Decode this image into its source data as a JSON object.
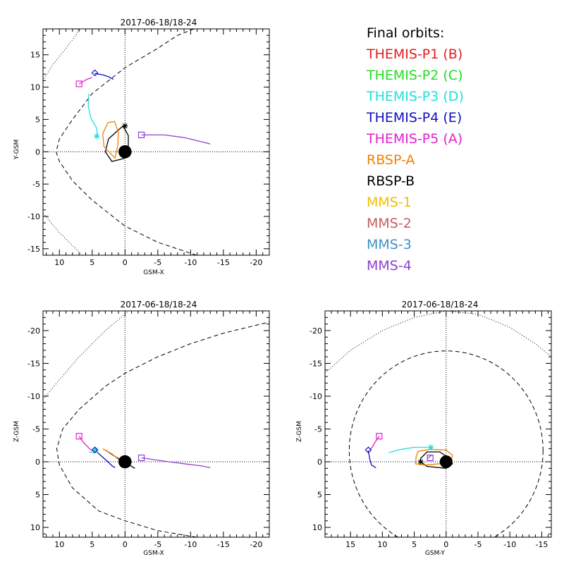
{
  "legend": {
    "title": "Final orbits:",
    "items": [
      {
        "label": "THEMIS-P1 (B)",
        "color": "#e02020"
      },
      {
        "label": "THEMIS-P2 (C)",
        "color": "#22dd22"
      },
      {
        "label": "THEMIS-P3 (D)",
        "color": "#22dddd"
      },
      {
        "label": "THEMIS-P4 (E)",
        "color": "#1010c0"
      },
      {
        "label": "THEMIS-P5 (A)",
        "color": "#e020d0"
      },
      {
        "label": "RBSP-A",
        "color": "#f08000"
      },
      {
        "label": "RBSP-B",
        "color": "#000000"
      },
      {
        "label": "MMS-1",
        "color": "#f0c000"
      },
      {
        "label": "MMS-2",
        "color": "#c06060"
      },
      {
        "label": "MMS-3",
        "color": "#4090c0"
      },
      {
        "label": "MMS-4",
        "color": "#9040d0"
      }
    ]
  },
  "chart_data": [
    {
      "type": "line",
      "id": "xy",
      "title": "2017-06-18/18-24",
      "xlabel": "GSM-X",
      "ylabel": "Y-GSM",
      "xlim": [
        12.5,
        -22
      ],
      "ylim": [
        19,
        -16
      ],
      "xticks": [
        10,
        5,
        0,
        -5,
        -10,
        -15,
        -20
      ],
      "yticks": [
        -15,
        -10,
        -5,
        0,
        5,
        10,
        15
      ],
      "series": [
        {
          "name": "RBSP-B",
          "color": "#000000",
          "points": [
            [
              0.3,
              4
            ],
            [
              2.5,
              2
            ],
            [
              3,
              0
            ],
            [
              2,
              -1.5
            ],
            [
              0,
              -1
            ],
            [
              -0.5,
              0.5
            ],
            [
              -0.5,
              2.5
            ],
            [
              0.3,
              4
            ]
          ]
        },
        {
          "name": "RBSP-A",
          "color": "#f08000",
          "points": [
            [
              1.5,
              -1
            ],
            [
              3.2,
              0.8
            ],
            [
              3.4,
              2.8
            ],
            [
              2.6,
              4.5
            ],
            [
              1.6,
              4.7
            ],
            [
              1,
              3
            ],
            [
              1.1,
              1
            ],
            [
              1.5,
              -1
            ]
          ]
        },
        {
          "name": "THEMIS-P3 (D)",
          "color": "#22dddd",
          "points": [
            [
              5.5,
              9
            ],
            [
              5.6,
              7
            ],
            [
              5.2,
              5.2
            ],
            [
              4.3,
              3.6
            ],
            [
              4.2,
              2.4
            ]
          ]
        },
        {
          "name": "THEMIS-P5 (A)",
          "color": "#e020d0",
          "points": [
            [
              7,
              10.5
            ],
            [
              5.8,
              11.2
            ],
            [
              5,
              11.5
            ]
          ]
        },
        {
          "name": "THEMIS-P4 (E)",
          "color": "#1010c0",
          "points": [
            [
              4.6,
              12.1
            ],
            [
              3.4,
              11.9
            ],
            [
              2.5,
              11.6
            ],
            [
              1.8,
              11.2
            ]
          ]
        },
        {
          "name": "MMS-4",
          "color": "#9040d0",
          "points": [
            [
              -2.5,
              2.6
            ],
            [
              -6,
              2.6
            ],
            [
              -9,
              2.2
            ],
            [
              -11.5,
              1.6
            ],
            [
              -13,
              1.2
            ]
          ]
        }
      ],
      "markers": [
        {
          "name": "rbsp-b-star",
          "shape": "star",
          "color": "#000000",
          "x": 0,
          "y": 4
        },
        {
          "name": "themis-p3-star",
          "shape": "star",
          "color": "#22dddd",
          "x": 4.3,
          "y": 2.4
        },
        {
          "name": "themis-p5-square",
          "shape": "square",
          "color": "#e020d0",
          "x": 7,
          "y": 10.5
        },
        {
          "name": "themis-p4-diamond",
          "shape": "diamond",
          "color": "#1010c0",
          "x": 4.6,
          "y": 12.2
        },
        {
          "name": "mms-square",
          "shape": "square",
          "color": "#9040d0",
          "x": -2.5,
          "y": 2.6
        }
      ],
      "earth": [
        0,
        0
      ],
      "magnetopause": [
        [
          -10.9,
          -16
        ],
        [
          -5,
          -14
        ],
        [
          0,
          -11.5
        ],
        [
          5,
          -7.5
        ],
        [
          8,
          -4.5
        ],
        [
          10,
          -1.5
        ],
        [
          10.5,
          0
        ],
        [
          10,
          2
        ],
        [
          8,
          5
        ],
        [
          5,
          9
        ],
        [
          0,
          13
        ],
        [
          -5,
          16
        ],
        [
          -8,
          18
        ],
        [
          -10.5,
          19
        ]
      ],
      "bowshock": [
        [
          6.5,
          -16
        ],
        [
          10,
          -12.5
        ],
        [
          12.5,
          -9.5
        ]
      ],
      "bowshock2": [
        [
          12.5,
          11
        ],
        [
          11,
          13.5
        ],
        [
          9,
          16
        ],
        [
          7.5,
          18
        ],
        [
          7,
          19
        ]
      ]
    },
    {
      "type": "line",
      "id": "xz",
      "title": "2017-06-18/18-24",
      "xlabel": "GSM-X",
      "ylabel": "Z-GSM",
      "xlim": [
        12.5,
        -22
      ],
      "ylim": [
        -23,
        11.5
      ],
      "xticks": [
        10,
        5,
        0,
        -5,
        -10,
        -15,
        -20
      ],
      "yticks": [
        10,
        5,
        0,
        -5,
        -10,
        -15,
        -20
      ],
      "series": [
        {
          "name": "RBSP-B",
          "color": "#000000",
          "points": [
            [
              3,
              -1.8
            ],
            [
              1.5,
              -0.8
            ],
            [
              0,
              0.1
            ],
            [
              -1.5,
              1
            ]
          ]
        },
        {
          "name": "RBSP-A",
          "color": "#f08000",
          "points": [
            [
              3.4,
              -2
            ],
            [
              2,
              -1.2
            ],
            [
              0.8,
              -0.2
            ],
            [
              0.2,
              0.4
            ]
          ]
        },
        {
          "name": "THEMIS-P4 (E)",
          "color": "#1010c0",
          "points": [
            [
              4.6,
              -1.8
            ],
            [
              3.5,
              -0.8
            ],
            [
              2.6,
              0
            ],
            [
              2,
              0.6
            ],
            [
              1.5,
              0.9
            ]
          ]
        },
        {
          "name": "THEMIS-P3 (D)",
          "color": "#22dddd",
          "points": [
            [
              5.5,
              -1.5
            ],
            [
              4.8,
              -1.4
            ],
            [
              4.3,
              -1.8
            ]
          ]
        },
        {
          "name": "THEMIS-P5 (A)",
          "color": "#e020d0",
          "points": [
            [
              7,
              -3.9
            ],
            [
              6.2,
              -2.8
            ],
            [
              5.3,
              -1.9
            ],
            [
              4.7,
              -1.6
            ]
          ]
        },
        {
          "name": "MMS-4",
          "color": "#9040d0",
          "points": [
            [
              -2.5,
              -0.6
            ],
            [
              -6,
              -0.1
            ],
            [
              -9,
              0.3
            ],
            [
              -11.5,
              0.6
            ],
            [
              -13,
              0.9
            ]
          ]
        }
      ],
      "markers": [
        {
          "name": "themis-p5-square",
          "shape": "square",
          "color": "#e020d0",
          "x": 7,
          "y": -3.9
        },
        {
          "name": "themis-p3-star",
          "shape": "star",
          "color": "#22dddd",
          "x": 4.5,
          "y": -1.8
        },
        {
          "name": "themis-p4-diamond",
          "shape": "diamond",
          "color": "#1010c0",
          "x": 4.6,
          "y": -1.8
        },
        {
          "name": "mms-square",
          "shape": "square",
          "color": "#9040d0",
          "x": -2.5,
          "y": -0.6
        }
      ],
      "earth": [
        0,
        0
      ],
      "magnetopause": [
        [
          -10.9,
          11.5
        ],
        [
          -5,
          10.5
        ],
        [
          0,
          9
        ],
        [
          4,
          7.5
        ],
        [
          8,
          4
        ],
        [
          10,
          0.5
        ],
        [
          10.4,
          -2
        ],
        [
          9.5,
          -5
        ],
        [
          7,
          -8
        ],
        [
          3,
          -11.5
        ],
        [
          0,
          -13.5
        ],
        [
          -5,
          -16
        ],
        [
          -10,
          -18
        ],
        [
          -15,
          -19.6
        ],
        [
          -22,
          -21.3
        ]
      ],
      "bowshock": [
        [
          12.5,
          -9.5
        ],
        [
          10,
          -12.5
        ],
        [
          7,
          -16
        ],
        [
          3,
          -20
        ],
        [
          0,
          -22.5
        ],
        [
          -0.5,
          -23
        ]
      ]
    },
    {
      "type": "line",
      "id": "yz",
      "title": "2017-06-18/18-24",
      "xlabel": "GSM-Y",
      "ylabel": "Z-GSM",
      "xlim": [
        19,
        -16.5
      ],
      "ylim": [
        -23,
        11.5
      ],
      "xticks": [
        15,
        10,
        5,
        0,
        -5,
        -10,
        -15
      ],
      "yticks": [
        10,
        5,
        0,
        -5,
        -10,
        -15,
        -20
      ],
      "series": [
        {
          "name": "RBSP-B",
          "color": "#000000",
          "points": [
            [
              4,
              0
            ],
            [
              3,
              0.7
            ],
            [
              0,
              1
            ],
            [
              -1,
              0.3
            ],
            [
              -0.5,
              -0.5
            ],
            [
              1,
              -1.5
            ],
            [
              3,
              -1.5
            ],
            [
              4,
              -0.5
            ],
            [
              4,
              0
            ]
          ]
        },
        {
          "name": "RBSP-A",
          "color": "#f08000",
          "points": [
            [
              4.7,
              -0.8
            ],
            [
              4.8,
              0.3
            ],
            [
              3.5,
              0.5
            ],
            [
              1,
              0.3
            ],
            [
              -0.8,
              0
            ],
            [
              -1,
              -1
            ],
            [
              0,
              -1.8
            ],
            [
              2.5,
              -1.9
            ],
            [
              4.4,
              -1.6
            ],
            [
              4.7,
              -0.8
            ]
          ]
        },
        {
          "name": "THEMIS-P3 (D)",
          "color": "#22dddd",
          "points": [
            [
              9,
              -1.4
            ],
            [
              7,
              -1.9
            ],
            [
              5,
              -2.2
            ],
            [
              3,
              -2.2
            ],
            [
              2.4,
              -2.2
            ]
          ]
        },
        {
          "name": "THEMIS-P5 (A)",
          "color": "#e020d0",
          "points": [
            [
              10.5,
              -3.9
            ],
            [
              11.2,
              -2.9
            ],
            [
              11.6,
              -2.2
            ],
            [
              12,
              -1.8
            ]
          ]
        },
        {
          "name": "THEMIS-P4 (E)",
          "color": "#1010c0",
          "points": [
            [
              12.2,
              -1.7
            ],
            [
              12,
              -0.5
            ],
            [
              11.7,
              0.5
            ],
            [
              11,
              0.9
            ]
          ]
        },
        {
          "name": "MMS-4",
          "color": "#9040d0",
          "points": [
            [
              2.8,
              -0.5
            ],
            [
              2.6,
              -0.8
            ],
            [
              2.3,
              -1.0
            ]
          ]
        }
      ],
      "markers": [
        {
          "name": "rbsp-b-star",
          "shape": "star",
          "color": "#000000",
          "x": 4,
          "y": 0
        },
        {
          "name": "themis-p3-star",
          "shape": "star",
          "color": "#22dddd",
          "x": 2.4,
          "y": -2.2
        },
        {
          "name": "themis-p5-square",
          "shape": "square",
          "color": "#e020d0",
          "x": 10.5,
          "y": -3.9
        },
        {
          "name": "themis-p4-diamond",
          "shape": "diamond",
          "color": "#1010c0",
          "x": 12.2,
          "y": -1.8
        },
        {
          "name": "mms-square",
          "shape": "square",
          "color": "#9040d0",
          "x": 2.5,
          "y": -0.6
        }
      ],
      "earth": [
        0,
        0
      ],
      "magnetopause_circle": {
        "cx": 0,
        "cy": -1.7,
        "r": 15.2
      },
      "bowshock": [
        [
          19,
          -13.5
        ],
        [
          15,
          -17
        ],
        [
          10,
          -20
        ],
        [
          5,
          -22
        ],
        [
          0,
          -23
        ],
        [
          -5,
          -22.5
        ],
        [
          -10,
          -20.5
        ],
        [
          -14,
          -18
        ],
        [
          -16.5,
          -16
        ]
      ]
    }
  ]
}
